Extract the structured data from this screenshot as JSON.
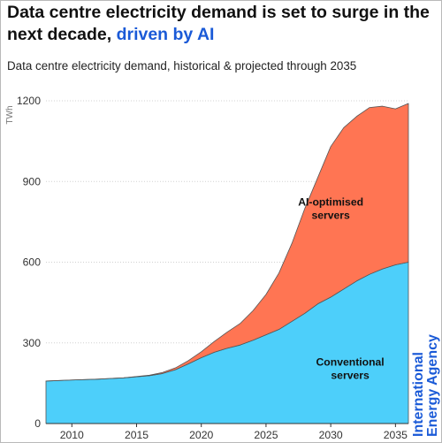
{
  "title": {
    "main": "Data centre electricity demand is set to surge in the next decade,",
    "highlight": "driven by AI"
  },
  "subtitle": "Data centre electricity demand, historical & projected through 2035",
  "branding": {
    "line1": "International",
    "line2": "Energy Agency"
  },
  "colors": {
    "conventional": "#4dcffa",
    "ai": "#ff7553",
    "accent": "#1a5ad7"
  },
  "chart_data": {
    "type": "area",
    "stacked": true,
    "ylabel": "TWh",
    "ylim": [
      0,
      1200
    ],
    "yticks": [
      0,
      300,
      600,
      900,
      1200
    ],
    "xlim": [
      2008,
      2036
    ],
    "xticks": [
      2010,
      2015,
      2020,
      2025,
      2030,
      2035
    ],
    "grid": "horizontal",
    "x": [
      2008,
      2010,
      2012,
      2014,
      2016,
      2017,
      2018,
      2019,
      2020,
      2021,
      2022,
      2023,
      2024,
      2025,
      2026,
      2027,
      2028,
      2029,
      2030,
      2031,
      2032,
      2033,
      2034,
      2035,
      2036
    ],
    "series": [
      {
        "name": "Conventional servers",
        "values": [
          158,
          162,
          165,
          170,
          178,
          186,
          200,
          222,
          245,
          265,
          280,
          292,
          310,
          330,
          350,
          380,
          410,
          445,
          470,
          500,
          530,
          555,
          575,
          590,
          600
        ]
      },
      {
        "name": "AI-optimised servers",
        "values": [
          0,
          0,
          0,
          0,
          2,
          4,
          7,
          12,
          22,
          40,
          60,
          80,
          110,
          150,
          210,
          290,
          390,
          470,
          560,
          600,
          612,
          620,
          605,
          580,
          590
        ]
      }
    ],
    "annotations": [
      {
        "series": "AI-optimised servers",
        "lines": [
          "AI-optimised",
          "servers"
        ]
      },
      {
        "series": "Conventional servers",
        "lines": [
          "Conventional",
          "servers"
        ]
      }
    ]
  }
}
